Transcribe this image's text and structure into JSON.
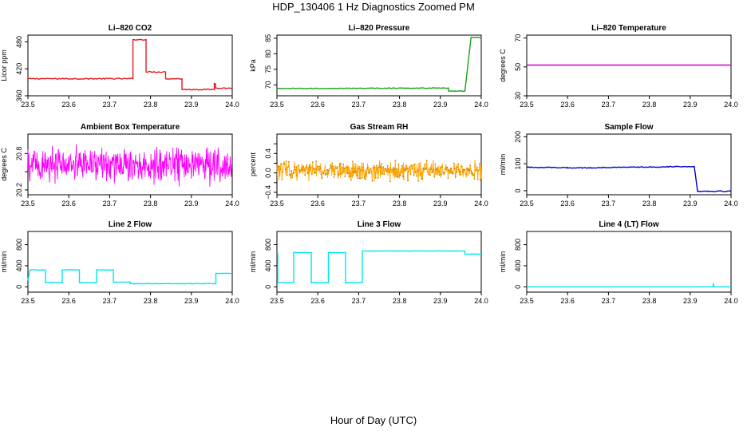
{
  "figure": {
    "title": "HDP_130406  1 Hz Diagnostics Zoomed PM",
    "xlabel": "Hour of Day (UTC)"
  },
  "chart_data": [
    {
      "type": "line",
      "title": "Li–820 CO2",
      "ylabel": "Licor ppm",
      "color": "#e41a1c",
      "xlim": [
        23.5,
        24.0
      ],
      "ylim": [
        360,
        495
      ],
      "xticks": [
        "23.5",
        "23.6",
        "23.7",
        "23.8",
        "23.9",
        "24.0"
      ],
      "yticks": [
        360,
        420,
        480
      ],
      "yticklabels": [
        "360",
        "420",
        "480"
      ],
      "noise": 1.2,
      "segments": [
        {
          "x": [
            23.5,
            23.757
          ],
          "y": [
            398,
            398
          ]
        },
        {
          "x": [
            23.757,
            23.789
          ],
          "y": [
            485,
            485
          ]
        },
        {
          "x": [
            23.789,
            23.837
          ],
          "y": [
            413,
            413
          ]
        },
        {
          "x": [
            23.837,
            23.877
          ],
          "y": [
            398,
            398
          ]
        },
        {
          "x": [
            23.877,
            23.956
          ],
          "y": [
            374,
            374
          ]
        },
        {
          "x": [
            23.956,
            23.959
          ],
          "y": [
            387,
            387
          ]
        },
        {
          "x": [
            23.959,
            24.0
          ],
          "y": [
            377,
            377
          ]
        }
      ]
    },
    {
      "type": "line",
      "title": "Li–820 Pressure",
      "ylabel": "kPa",
      "color": "#1aa31a",
      "xlim": [
        23.5,
        24.0
      ],
      "ylim": [
        66.5,
        86
      ],
      "xticks": [
        "23.5",
        "23.6",
        "23.7",
        "23.8",
        "23.9",
        "24.0"
      ],
      "yticks": [
        70,
        75,
        80,
        85
      ],
      "yticklabels": [
        "70",
        "75",
        "80",
        "85"
      ],
      "noise": 0.12,
      "segments": [
        {
          "x": [
            23.5,
            23.92
          ],
          "y": [
            68.8,
            69.0
          ]
        },
        {
          "x": [
            23.92,
            23.96
          ],
          "y": [
            68.0,
            68.0
          ]
        },
        {
          "x": [
            23.96,
            23.975
          ],
          "y": [
            68.0,
            85.3
          ]
        },
        {
          "x": [
            23.975,
            24.0
          ],
          "y": [
            85.3,
            85.3
          ]
        }
      ]
    },
    {
      "type": "line",
      "title": "Li–820 Temperature",
      "ylabel": "degrees C",
      "color": "#cc00cc",
      "xlim": [
        23.5,
        24.0
      ],
      "ylim": [
        30,
        72
      ],
      "xticks": [
        "23.5",
        "23.6",
        "23.7",
        "23.8",
        "23.9",
        "24.0"
      ],
      "yticks": [
        30,
        50,
        70
      ],
      "yticklabels": [
        "30",
        "50",
        "70"
      ],
      "noise": 0,
      "segments": [
        {
          "x": [
            23.5,
            24.0
          ],
          "y": [
            51.3,
            51.3
          ]
        }
      ]
    },
    {
      "type": "line",
      "title": "Ambient Box Temperature",
      "ylabel": "degrees C",
      "color": "#ff00ff",
      "xlim": [
        23.5,
        24.0
      ],
      "ylim": [
        20.12,
        21.12
      ],
      "xticks": [
        "23.5",
        "23.6",
        "23.7",
        "23.8",
        "23.9",
        "24.0"
      ],
      "yticks": [
        20.2,
        20.5,
        20.8
      ],
      "yticklabels": [
        "20.2",
        "",
        "20.8"
      ],
      "center": 20.62,
      "spread": 0.44,
      "samples": 520
    },
    {
      "type": "line",
      "title": "Gas Stream RH",
      "ylabel": "percent",
      "color": "#ffa500",
      "marker": "points",
      "xlim": [
        23.5,
        24.0
      ],
      "ylim": [
        -0.45,
        0.8
      ],
      "xticks": [
        "23.5",
        "23.6",
        "23.7",
        "23.8",
        "23.9",
        "24.0"
      ],
      "yticks": [
        -0.4,
        -0.2,
        0.0,
        0.2,
        0.4,
        0.6
      ],
      "yticklabels": [
        "−0.4",
        "",
        "0.0",
        "",
        "0.4",
        ""
      ],
      "center": 0.05,
      "spread": 0.28,
      "samples": 480
    },
    {
      "type": "line",
      "title": "Sample Flow",
      "ylabel": "ml/min",
      "color": "#0000cc",
      "xlim": [
        23.5,
        24.0
      ],
      "ylim": [
        -15,
        210
      ],
      "xticks": [
        "23.5",
        "23.6",
        "23.7",
        "23.8",
        "23.9",
        "24.0"
      ],
      "yticks": [
        0,
        100,
        200
      ],
      "yticklabels": [
        "0",
        "100",
        "200"
      ],
      "noise": 1.5,
      "segments": [
        {
          "x": [
            23.5,
            23.6
          ],
          "y": [
            87,
            86
          ]
        },
        {
          "x": [
            23.6,
            23.7
          ],
          "y": [
            84,
            86
          ]
        },
        {
          "x": [
            23.7,
            23.8
          ],
          "y": [
            86,
            88
          ]
        },
        {
          "x": [
            23.8,
            23.91
          ],
          "y": [
            88,
            90
          ]
        },
        {
          "x": [
            23.91,
            23.918
          ],
          "y": [
            90,
            -2
          ]
        },
        {
          "x": [
            23.918,
            24.0
          ],
          "y": [
            -2,
            -2
          ]
        }
      ]
    },
    {
      "type": "line",
      "title": "Line 2 Flow",
      "ylabel": "ml/min",
      "color": "#00e5ee",
      "xlim": [
        23.5,
        24.0
      ],
      "ylim": [
        -100,
        1050
      ],
      "xticks": [
        "23.5",
        "23.6",
        "23.7",
        "23.8",
        "23.9",
        "24.0"
      ],
      "yticks": [
        0,
        400,
        800
      ],
      "yticklabels": [
        "0",
        "400",
        "800"
      ],
      "noise": 4,
      "segments": [
        {
          "x": [
            23.5,
            23.505
          ],
          "y": [
            120,
            320
          ]
        },
        {
          "x": [
            23.505,
            23.543
          ],
          "y": [
            320,
            320
          ]
        },
        {
          "x": [
            23.543,
            23.584
          ],
          "y": [
            80,
            80
          ]
        },
        {
          "x": [
            23.584,
            23.626
          ],
          "y": [
            320,
            320
          ]
        },
        {
          "x": [
            23.626,
            23.668
          ],
          "y": [
            80,
            80
          ]
        },
        {
          "x": [
            23.668,
            23.709
          ],
          "y": [
            320,
            320
          ]
        },
        {
          "x": [
            23.709,
            23.75
          ],
          "y": [
            90,
            90
          ]
        },
        {
          "x": [
            23.75,
            23.96
          ],
          "y": [
            60,
            60
          ]
        },
        {
          "x": [
            23.96,
            24.0
          ],
          "y": [
            255,
            255
          ]
        }
      ]
    },
    {
      "type": "line",
      "title": "Line 3 Flow",
      "ylabel": "ml/min",
      "color": "#00e5ee",
      "xlim": [
        23.5,
        24.0
      ],
      "ylim": [
        -100,
        1050
      ],
      "xticks": [
        "23.5",
        "23.6",
        "23.7",
        "23.8",
        "23.9",
        "24.0"
      ],
      "yticks": [
        0,
        400,
        800
      ],
      "yticklabels": [
        "0",
        "400",
        "800"
      ],
      "noise": 3,
      "segments": [
        {
          "x": [
            23.5,
            23.502
          ],
          "y": [
            640,
            640
          ]
        },
        {
          "x": [
            23.502,
            23.541
          ],
          "y": [
            80,
            80
          ]
        },
        {
          "x": [
            23.541,
            23.584
          ],
          "y": [
            650,
            650
          ]
        },
        {
          "x": [
            23.584,
            23.626
          ],
          "y": [
            80,
            80
          ]
        },
        {
          "x": [
            23.626,
            23.668
          ],
          "y": [
            650,
            650
          ]
        },
        {
          "x": [
            23.668,
            23.709
          ],
          "y": [
            80,
            80
          ]
        },
        {
          "x": [
            23.709,
            23.96
          ],
          "y": [
            680,
            680
          ]
        },
        {
          "x": [
            23.96,
            24.0
          ],
          "y": [
            620,
            620
          ]
        }
      ]
    },
    {
      "type": "line",
      "title": "Line 4 (LT) Flow",
      "ylabel": "ml/min",
      "color": "#00e5ee",
      "xlim": [
        23.5,
        24.0
      ],
      "ylim": [
        -100,
        1050
      ],
      "xticks": [
        "23.5",
        "23.6",
        "23.7",
        "23.8",
        "23.9",
        "24.0"
      ],
      "yticks": [
        0,
        400,
        800
      ],
      "yticklabels": [
        "0",
        "400",
        "800"
      ],
      "noise": 0,
      "segments": [
        {
          "x": [
            23.5,
            23.956
          ],
          "y": [
            0,
            0
          ]
        },
        {
          "x": [
            23.956,
            23.957
          ],
          "y": [
            0,
            70
          ]
        },
        {
          "x": [
            23.957,
            23.958
          ],
          "y": [
            70,
            0
          ]
        },
        {
          "x": [
            23.958,
            24.0
          ],
          "y": [
            0,
            0
          ]
        }
      ]
    }
  ]
}
